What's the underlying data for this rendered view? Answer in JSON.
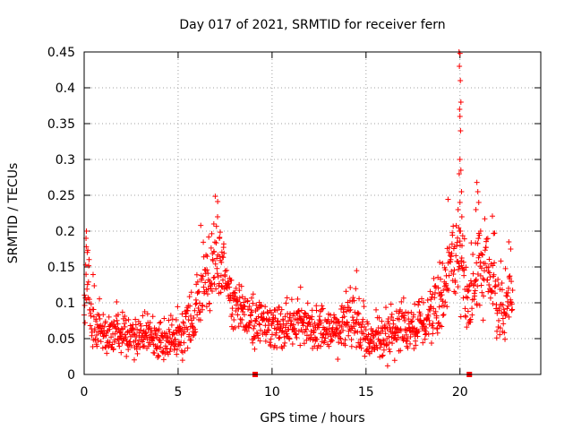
{
  "chart_data": {
    "type": "scatter",
    "title": "Day 017 of 2021, SRMTID for receiver fern",
    "xlabel": "GPS time / hours",
    "ylabel": "SRMTID / TECUs",
    "xlim": [
      0,
      24.3
    ],
    "ylim": [
      0,
      0.45
    ],
    "x_ticks": [
      0,
      5,
      10,
      15,
      20
    ],
    "x_tick_labels": [
      "0",
      "5",
      "10",
      "15",
      "20"
    ],
    "y_ticks": [
      0,
      0.05,
      0.1,
      0.15,
      0.2,
      0.25,
      0.3,
      0.35,
      0.4,
      0.45
    ],
    "y_tick_labels": [
      "0",
      "0.05",
      "0.1",
      "0.15",
      "0.2",
      "0.25",
      "0.3",
      "0.35",
      "0.4",
      "0.45"
    ],
    "grid": true,
    "marker": "plus",
    "series_color": "#ff0000",
    "marker_color": "#ff0000",
    "gap_markers_x": [
      9.1,
      20.5
    ],
    "profile": [
      {
        "x": 0.0,
        "y": 0.085,
        "spread": 0.03
      },
      {
        "x": 0.15,
        "y": 0.16,
        "spread": 0.04
      },
      {
        "x": 0.4,
        "y": 0.07,
        "spread": 0.03
      },
      {
        "x": 1.0,
        "y": 0.055,
        "spread": 0.022
      },
      {
        "x": 2.0,
        "y": 0.05,
        "spread": 0.022
      },
      {
        "x": 3.0,
        "y": 0.055,
        "spread": 0.022
      },
      {
        "x": 4.2,
        "y": 0.04,
        "spread": 0.02
      },
      {
        "x": 5.0,
        "y": 0.055,
        "spread": 0.025
      },
      {
        "x": 5.8,
        "y": 0.07,
        "spread": 0.03
      },
      {
        "x": 6.5,
        "y": 0.13,
        "spread": 0.04
      },
      {
        "x": 7.2,
        "y": 0.16,
        "spread": 0.045
      },
      {
        "x": 7.8,
        "y": 0.11,
        "spread": 0.04
      },
      {
        "x": 8.5,
        "y": 0.08,
        "spread": 0.03
      },
      {
        "x": 9.5,
        "y": 0.07,
        "spread": 0.025
      },
      {
        "x": 10.5,
        "y": 0.065,
        "spread": 0.025
      },
      {
        "x": 11.5,
        "y": 0.07,
        "spread": 0.025
      },
      {
        "x": 12.5,
        "y": 0.06,
        "spread": 0.025
      },
      {
        "x": 13.5,
        "y": 0.06,
        "spread": 0.025
      },
      {
        "x": 14.4,
        "y": 0.08,
        "spread": 0.03
      },
      {
        "x": 15.3,
        "y": 0.04,
        "spread": 0.018
      },
      {
        "x": 16.0,
        "y": 0.055,
        "spread": 0.03
      },
      {
        "x": 17.0,
        "y": 0.065,
        "spread": 0.025
      },
      {
        "x": 18.0,
        "y": 0.065,
        "spread": 0.025
      },
      {
        "x": 18.7,
        "y": 0.09,
        "spread": 0.035
      },
      {
        "x": 19.4,
        "y": 0.14,
        "spread": 0.04
      },
      {
        "x": 19.9,
        "y": 0.17,
        "spread": 0.045
      },
      {
        "x": 20.5,
        "y": 0.1,
        "spread": 0.04
      },
      {
        "x": 21.0,
        "y": 0.15,
        "spread": 0.045
      },
      {
        "x": 21.6,
        "y": 0.14,
        "spread": 0.04
      },
      {
        "x": 22.2,
        "y": 0.08,
        "spread": 0.035
      },
      {
        "x": 22.8,
        "y": 0.11,
        "spread": 0.04
      }
    ],
    "spikes": [
      {
        "x": 0.1,
        "y": 0.19
      },
      {
        "x": 0.12,
        "y": 0.2
      },
      {
        "x": 6.9,
        "y": 0.21
      },
      {
        "x": 7.1,
        "y": 0.22
      },
      {
        "x": 7.2,
        "y": 0.19
      },
      {
        "x": 19.95,
        "y": 0.45
      },
      {
        "x": 20.0,
        "y": 0.448
      },
      {
        "x": 19.97,
        "y": 0.43
      },
      {
        "x": 20.02,
        "y": 0.41
      },
      {
        "x": 20.05,
        "y": 0.38
      },
      {
        "x": 19.98,
        "y": 0.37
      },
      {
        "x": 20.0,
        "y": 0.36
      },
      {
        "x": 20.03,
        "y": 0.34
      },
      {
        "x": 20.0,
        "y": 0.3
      },
      {
        "x": 20.05,
        "y": 0.285
      },
      {
        "x": 19.96,
        "y": 0.28
      },
      {
        "x": 20.08,
        "y": 0.255
      },
      {
        "x": 20.0,
        "y": 0.24
      },
      {
        "x": 19.9,
        "y": 0.23
      },
      {
        "x": 20.1,
        "y": 0.22
      },
      {
        "x": 20.9,
        "y": 0.268
      },
      {
        "x": 20.95,
        "y": 0.255
      },
      {
        "x": 21.0,
        "y": 0.24
      },
      {
        "x": 20.85,
        "y": 0.23
      },
      {
        "x": 21.1,
        "y": 0.2
      },
      {
        "x": 22.6,
        "y": 0.185
      },
      {
        "x": 22.7,
        "y": 0.175
      }
    ],
    "n_points": 1400
  }
}
